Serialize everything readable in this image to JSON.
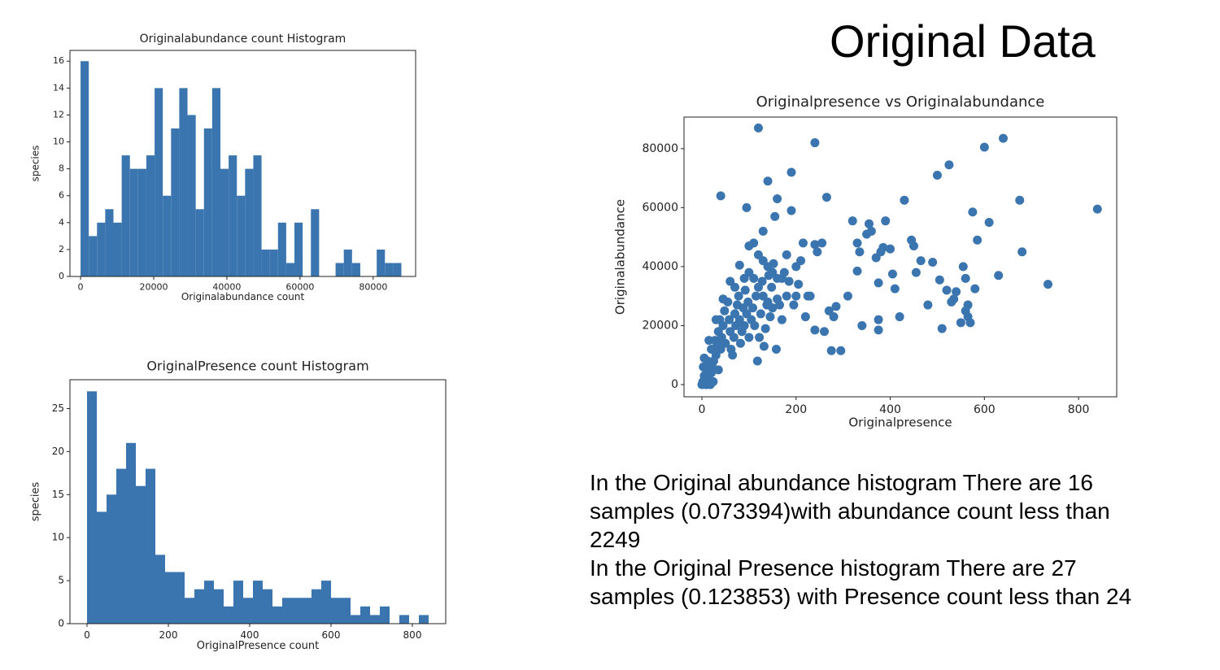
{
  "title": "Original Data",
  "text": [
    "In the Original abundance histogram There are 16",
    "samples (0.073394)with abundance count less than",
    "2249",
    "In the Original Presence histogram There are 27",
    "samples (0.123853) with Presence count less than 24"
  ],
  "chart_data": [
    {
      "type": "histogram",
      "title": "Originalabundance count Histogram",
      "xlabel": "Originalabundance count",
      "ylabel": "species",
      "color": "#3b75af",
      "bins": [
        0,
        2249,
        4498,
        6747,
        8996,
        11245,
        13494,
        15743,
        17992,
        20241,
        22490,
        24739,
        26988,
        29237,
        31486,
        33735,
        35984,
        38233,
        40482,
        42731,
        44980,
        47229,
        49478,
        51727,
        53976,
        56225,
        58474,
        60723,
        62972,
        65221,
        67470,
        69719,
        71968,
        74217,
        76466,
        78715,
        80964,
        83213,
        85462,
        87711
      ],
      "counts": [
        16,
        3,
        4,
        5,
        4,
        9,
        8,
        8,
        9,
        14,
        6,
        11,
        14,
        12,
        5,
        11,
        14,
        8,
        9,
        6,
        8,
        9,
        2,
        2,
        4,
        1,
        4,
        0,
        5,
        0,
        0,
        1,
        2,
        1,
        0,
        0,
        2,
        1,
        1
      ],
      "xlim": [
        -2900,
        91600
      ],
      "ylim": [
        0,
        16.8
      ],
      "xticks": [
        0,
        20000,
        40000,
        60000,
        80000
      ],
      "yticks": [
        0,
        2,
        4,
        6,
        8,
        10,
        12,
        14,
        16
      ]
    },
    {
      "type": "histogram",
      "title": "OriginalPresence count Histogram",
      "xlabel": "OriginalPresence count",
      "ylabel": "species",
      "color": "#3b75af",
      "bins": [
        0,
        24,
        48,
        72,
        96,
        120,
        144,
        168,
        192,
        216,
        240,
        264,
        288,
        312,
        336,
        360,
        384,
        408,
        432,
        456,
        480,
        504,
        528,
        552,
        576,
        600,
        624,
        648,
        672,
        696,
        720,
        744,
        768,
        792,
        816,
        840
      ],
      "counts": [
        27,
        13,
        15,
        18,
        21,
        16,
        18,
        8,
        6,
        6,
        3,
        4,
        5,
        4,
        2,
        5,
        3,
        5,
        4,
        2,
        3,
        3,
        3,
        4,
        5,
        3,
        3,
        1,
        2,
        1,
        2,
        0,
        1,
        0,
        1
      ],
      "xlim": [
        -42,
        882
      ],
      "ylim": [
        0,
        28.35
      ],
      "xticks": [
        0,
        200,
        400,
        600,
        800
      ],
      "yticks": [
        0,
        5,
        10,
        15,
        20,
        25
      ]
    },
    {
      "type": "scatter",
      "title": "Originalpresence vs Originalabundance",
      "xlabel": "Originalpresence",
      "ylabel": "Originalabundance",
      "color": "#3b75af",
      "x": [
        120,
        240,
        40,
        95,
        190,
        140,
        160,
        155,
        130,
        190,
        265,
        80,
        100,
        110,
        120,
        130,
        140,
        150,
        160,
        170,
        200,
        210,
        215,
        245,
        240,
        255,
        180,
        60,
        70,
        90,
        100,
        110,
        120,
        130,
        140,
        150,
        160,
        180,
        200,
        220,
        230,
        240,
        260,
        270,
        280,
        285,
        275,
        295,
        310,
        320,
        330,
        335,
        330,
        350,
        360,
        355,
        385,
        390,
        370,
        380,
        375,
        400,
        405,
        410,
        430,
        445,
        450,
        455,
        465,
        480,
        490,
        500,
        525,
        505,
        520,
        535,
        550,
        555,
        560,
        565,
        575,
        585,
        600,
        610,
        630,
        640,
        675,
        680,
        735,
        840,
        510,
        530,
        540,
        560,
        565,
        570,
        580,
        340,
        375,
        375,
        420,
        0,
        2,
        5,
        8,
        10,
        12,
        15,
        18,
        20,
        22,
        25,
        28,
        30,
        32,
        35,
        38,
        40,
        42,
        45,
        48,
        50,
        55,
        58,
        60,
        62,
        65,
        68,
        70,
        72,
        75,
        78,
        80,
        82,
        85,
        88,
        90,
        92,
        95,
        98,
        100,
        105,
        108,
        112,
        115,
        118,
        122,
        125,
        128,
        132,
        135,
        138,
        142,
        145,
        148,
        152,
        158,
        165,
        170,
        175,
        185,
        195,
        205,
        225,
        5,
        3,
        15,
        20,
        24,
        10,
        30,
        45,
        35,
        25
      ],
      "y": [
        87000,
        82000,
        64000,
        60000,
        72000,
        69000,
        63000,
        57000,
        52000,
        59000,
        63500,
        40500,
        47000,
        48000,
        44000,
        42000,
        40000,
        38000,
        36000,
        36000,
        40000,
        42000,
        48000,
        45000,
        47500,
        48000,
        44000,
        35000,
        33000,
        36000,
        38000,
        36000,
        33000,
        30000,
        28000,
        26000,
        29000,
        30000,
        30000,
        23000,
        30000,
        18500,
        18000,
        25000,
        23000,
        26500,
        11500,
        11500,
        30000,
        55500,
        38500,
        45000,
        48000,
        51000,
        52000,
        54500,
        46500,
        55500,
        43000,
        45000,
        34500,
        46000,
        37500,
        32500,
        62500,
        49000,
        47000,
        38000,
        42000,
        27000,
        41500,
        71000,
        74500,
        35500,
        32000,
        29000,
        21000,
        40000,
        36000,
        23000,
        58500,
        49000,
        80500,
        55000,
        37000,
        83500,
        62500,
        45000,
        34000,
        59500,
        19000,
        28000,
        31500,
        25000,
        27000,
        21000,
        32500,
        20000,
        22000,
        18500,
        23000,
        0,
        1000,
        3000,
        0,
        5000,
        8000,
        2000,
        0,
        4000,
        6000,
        12000,
        15000,
        10000,
        14000,
        18000,
        22000,
        12000,
        16000,
        20000,
        25000,
        14000,
        28000,
        22000,
        18000,
        12000,
        10000,
        16000,
        24000,
        20000,
        27000,
        30000,
        22000,
        14000,
        18000,
        26000,
        20000,
        32000,
        24000,
        28000,
        16000,
        22000,
        26000,
        20000,
        30000,
        8000,
        16000,
        24000,
        35000,
        13000,
        19000,
        27000,
        37000,
        23000,
        33000,
        41000,
        12000,
        27000,
        22000,
        38000,
        35000,
        27000,
        34000,
        30000,
        9000,
        6000,
        15000,
        12000,
        1000,
        0,
        22000,
        29000,
        5000,
        8000
      ],
      "xlim": [
        -38,
        881
      ],
      "ylim": [
        -4140,
        90700
      ],
      "xticks": [
        0,
        200,
        400,
        600,
        800
      ],
      "yticks": [
        0,
        20000,
        40000,
        60000,
        80000
      ]
    }
  ]
}
